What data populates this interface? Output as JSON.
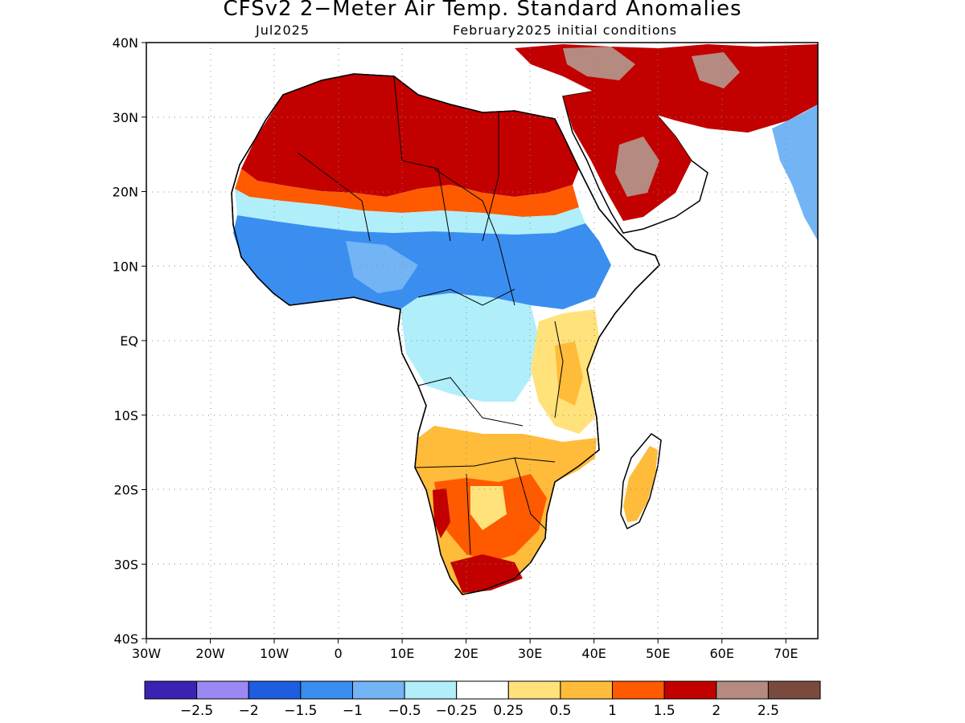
{
  "header": {
    "title": "CFSv2 2−Meter Air Temp. Standard Anomalies",
    "target_month": "Jul2025",
    "initial_conditions": "February2025 initial conditions"
  },
  "map": {
    "lat_labels": [
      "40N",
      "30N",
      "20N",
      "10N",
      "EQ",
      "10S",
      "20S",
      "30S",
      "40S"
    ],
    "lon_labels": [
      "30W",
      "20W",
      "10W",
      "0",
      "10E",
      "20E",
      "30E",
      "40E",
      "50E",
      "60E",
      "70E"
    ],
    "lat_values": [
      40,
      30,
      20,
      10,
      0,
      -10,
      -20,
      -30,
      -40
    ],
    "lon_values": [
      -30,
      -20,
      -10,
      0,
      10,
      20,
      30,
      40,
      50,
      60,
      70
    ],
    "extent": {
      "lon_min": -30,
      "lon_max": 75,
      "lat_min": -40,
      "lat_max": 40
    }
  },
  "colorbar": {
    "colors": [
      "#3b22b3",
      "#9b88f5",
      "#1f5de0",
      "#3a8ef0",
      "#73b4f5",
      "#b0eefa",
      "#ffffff",
      "#ffe27a",
      "#ffbb3a",
      "#ff5a00",
      "#c20000",
      "#b58a80",
      "#7a4a3e"
    ],
    "labels": [
      "−2.5",
      "−2",
      "−1.5",
      "−1",
      "−0.5",
      "−0.25",
      "0.25",
      "0.5",
      "1",
      "1.5",
      "2",
      "2.5"
    ]
  }
}
